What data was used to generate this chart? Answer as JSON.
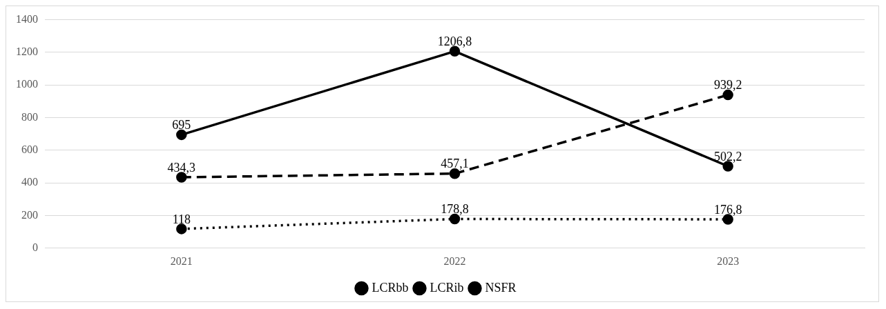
{
  "chart_data": {
    "type": "line",
    "categories": [
      "2021",
      "2022",
      "2023"
    ],
    "series": [
      {
        "name": "LCRbb",
        "color": "#000000",
        "line_style": "dashed",
        "values": [
          434.3,
          457.1,
          939.2
        ],
        "value_labels": [
          "434,3",
          "457,1",
          "939,2"
        ]
      },
      {
        "name": "LCRib",
        "color": "#000000",
        "line_style": "solid",
        "values": [
          695,
          1206.8,
          502.2
        ],
        "value_labels": [
          "695",
          "1206,8",
          "502,2"
        ]
      },
      {
        "name": "NSFR",
        "color": "#000000",
        "line_style": "dotted",
        "values": [
          118,
          178.8,
          176.8
        ],
        "value_labels": [
          "118",
          "178,8",
          "176,8"
        ]
      }
    ],
    "ylim": [
      0,
      1400
    ],
    "yticks": [
      0,
      200,
      400,
      600,
      800,
      1000,
      1200,
      1400
    ],
    "grid": "y",
    "legend": "bottom",
    "marker": "circle"
  }
}
